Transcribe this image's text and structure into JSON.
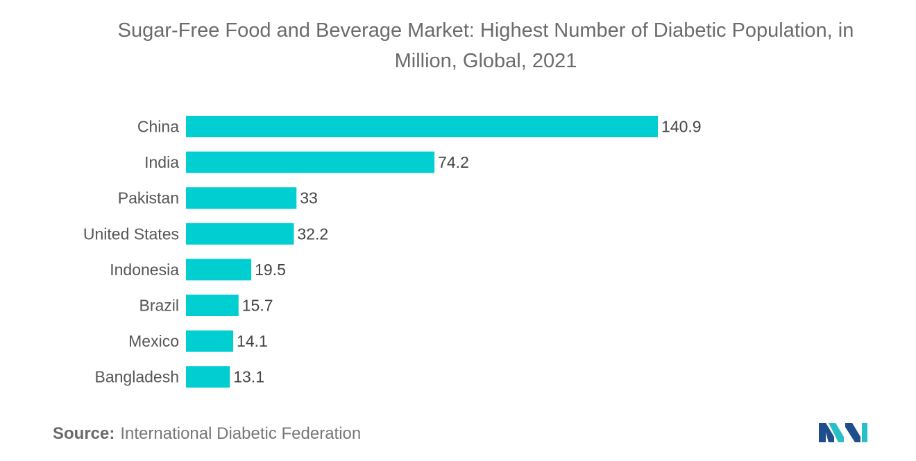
{
  "chart_data": {
    "type": "bar",
    "orientation": "horizontal",
    "title": "Sugar-Free Food and Beverage Market: Highest Number of Diabetic Population, in Million, Global, 2021",
    "title_lines": [
      "Sugar-Free Food and Beverage Market: Highest Number of Diabetic Population, in",
      "Million, Global, 2021"
    ],
    "categories": [
      "China",
      "India",
      "Pakistan",
      "United States",
      "Indonesia",
      "Brazil",
      "Mexico",
      "Bangladesh"
    ],
    "values": [
      140.9,
      74.2,
      33,
      32.2,
      19.5,
      15.7,
      14.1,
      13.1
    ],
    "value_labels": [
      "140.9",
      "74.2",
      "33",
      "32.2",
      "19.5",
      "15.7",
      "14.1",
      "13.1"
    ],
    "xlim": [
      0,
      140.9
    ],
    "bar_color": "#00CED1",
    "grid": false,
    "legend": "none"
  },
  "source": {
    "label": "Source:",
    "text": "International Diabetic Federation"
  },
  "logo": {
    "icon": "mordor-intelligence-logo",
    "colors": [
      "#1F4E8C",
      "#2ABFC8"
    ]
  }
}
